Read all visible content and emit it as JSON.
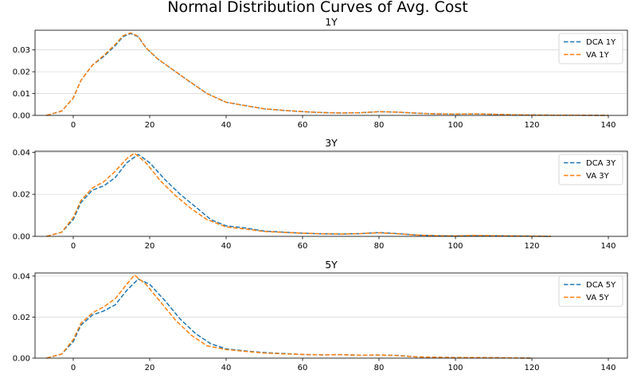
{
  "chart_data": {
    "type": "line",
    "title": "Normal Distribution Curves of Avg. Cost",
    "colors": {
      "dca": "#1f77b4",
      "va": "#ff7f0e",
      "grid": "#d9d9d9"
    },
    "grid": "horizontal",
    "legend_placement": "top-right",
    "line_style": "dashed",
    "panels": [
      {
        "title": "1Y",
        "xlim": [
          -10,
          145
        ],
        "ylim": [
          0,
          0.039
        ],
        "xticks": [
          0,
          20,
          40,
          60,
          80,
          100,
          120,
          140
        ],
        "yticks": [
          0,
          0.01,
          0.02,
          0.03
        ],
        "ytick_labels": [
          "0.00",
          "0.01",
          "0.02",
          "0.03"
        ],
        "series": [
          {
            "name": "DCA 1Y",
            "color_key": "dca",
            "x": [
              -7,
              -3,
              0,
              2,
              5,
              8,
              11,
              13,
              15,
              17,
              19,
              22,
              26,
              30,
              35,
              40,
              45,
              50,
              55,
              60,
              65,
              70,
              75,
              80,
              85,
              90,
              95,
              100,
              105,
              110,
              115,
              120,
              125,
              130,
              135,
              140
            ],
            "y": [
              0,
              0.002,
              0.008,
              0.016,
              0.023,
              0.027,
              0.032,
              0.036,
              0.0375,
              0.036,
              0.031,
              0.026,
              0.021,
              0.016,
              0.01,
              0.006,
              0.0045,
              0.003,
              0.0023,
              0.0017,
              0.0013,
              0.0011,
              0.0012,
              0.0017,
              0.0015,
              0.001,
              0.0007,
              0.0006,
              0.0007,
              0.0005,
              0.0003,
              0.0002,
              0.0001,
              0.0001,
              5e-05,
              0
            ]
          },
          {
            "name": "VA 1Y",
            "color_key": "va",
            "x": [
              -7,
              -3,
              0,
              2,
              5,
              8,
              11,
              13,
              15,
              17,
              19,
              22,
              26,
              30,
              35,
              40,
              45,
              50,
              55,
              60,
              65,
              70,
              75,
              80,
              85,
              90,
              95,
              100,
              105,
              110,
              115,
              120,
              125,
              130,
              135,
              140
            ],
            "y": [
              0,
              0.002,
              0.008,
              0.016,
              0.023,
              0.0275,
              0.0325,
              0.0365,
              0.0378,
              0.0362,
              0.031,
              0.026,
              0.021,
              0.016,
              0.01,
              0.006,
              0.0045,
              0.003,
              0.0023,
              0.0017,
              0.0013,
              0.0011,
              0.0012,
              0.0017,
              0.0015,
              0.001,
              0.0007,
              0.0006,
              0.0007,
              0.0005,
              0.0003,
              0.0002,
              0.0001,
              0.0001,
              5e-05,
              0
            ]
          }
        ]
      },
      {
        "title": "3Y",
        "xlim": [
          -10,
          145
        ],
        "ylim": [
          0,
          0.0405
        ],
        "xticks": [
          0,
          20,
          40,
          60,
          80,
          100,
          120,
          140
        ],
        "yticks": [
          0,
          0.02,
          0.04
        ],
        "ytick_labels": [
          "0.00",
          "0.02",
          "0.04"
        ],
        "series": [
          {
            "name": "DCA 3Y",
            "color_key": "dca",
            "x": [
              -7,
              -3,
              0,
              2,
              5,
              8,
              11,
              14,
              17,
              20,
              24,
              28,
              32,
              36,
              40,
              45,
              50,
              55,
              60,
              65,
              70,
              75,
              80,
              85,
              90,
              95,
              100,
              105,
              110,
              115,
              120,
              125
            ],
            "y": [
              0,
              0.002,
              0.008,
              0.016,
              0.022,
              0.024,
              0.028,
              0.035,
              0.039,
              0.035,
              0.027,
              0.02,
              0.014,
              0.008,
              0.005,
              0.004,
              0.0025,
              0.002,
              0.0015,
              0.0012,
              0.0011,
              0.0013,
              0.0018,
              0.0013,
              0.0006,
              0.0003,
              0.0002,
              0.0003,
              0.0003,
              0.0002,
              0.0001,
              0
            ]
          },
          {
            "name": "VA 3Y",
            "color_key": "va",
            "x": [
              -7,
              -3,
              0,
              2,
              5,
              8,
              11,
              14,
              16,
              19,
              23,
              27,
              31,
              35,
              40,
              45,
              50,
              55,
              60,
              65,
              70,
              75,
              80,
              85,
              90,
              95,
              100,
              105,
              110,
              115,
              120,
              125
            ],
            "y": [
              0,
              0.002,
              0.009,
              0.017,
              0.023,
              0.026,
              0.031,
              0.037,
              0.0395,
              0.035,
              0.026,
              0.019,
              0.013,
              0.008,
              0.0045,
              0.0035,
              0.0023,
              0.0019,
              0.0015,
              0.0012,
              0.0011,
              0.0013,
              0.0017,
              0.0012,
              0.0006,
              0.0003,
              0.0002,
              0.0004,
              0.0003,
              0.0002,
              0.0001,
              0
            ]
          }
        ]
      },
      {
        "title": "5Y",
        "xlim": [
          -10,
          145
        ],
        "ylim": [
          0,
          0.0415
        ],
        "xticks": [
          0,
          20,
          40,
          60,
          80,
          100,
          120,
          140
        ],
        "yticks": [
          0,
          0.02,
          0.04
        ],
        "ytick_labels": [
          "0.00",
          "0.02",
          "0.04"
        ],
        "series": [
          {
            "name": "DCA 5Y",
            "color_key": "dca",
            "x": [
              -7,
              -3,
              0,
              2,
              5,
              8,
              11,
              14,
              17,
              20,
              24,
              28,
              32,
              36,
              40,
              45,
              50,
              55,
              60,
              65,
              70,
              75,
              80,
              85,
              90,
              95,
              100,
              105,
              110,
              115,
              120
            ],
            "y": [
              0,
              0.002,
              0.008,
              0.016,
              0.021,
              0.023,
              0.026,
              0.033,
              0.0385,
              0.036,
              0.028,
              0.019,
              0.012,
              0.007,
              0.0045,
              0.0035,
              0.0027,
              0.0022,
              0.0018,
              0.0016,
              0.0017,
              0.0014,
              0.0015,
              0.0013,
              0.0006,
              0.0004,
              0.0003,
              0.0003,
              0.0002,
              0.0001,
              0
            ]
          },
          {
            "name": "VA 5Y",
            "color_key": "va",
            "x": [
              -7,
              -3,
              0,
              2,
              5,
              8,
              11,
              14,
              16,
              19,
              23,
              27,
              31,
              35,
              40,
              45,
              50,
              55,
              60,
              65,
              70,
              75,
              80,
              85,
              90,
              95,
              100,
              105,
              110,
              115,
              120
            ],
            "y": [
              0,
              0.002,
              0.009,
              0.017,
              0.022,
              0.025,
              0.029,
              0.036,
              0.0405,
              0.036,
              0.027,
              0.018,
              0.011,
              0.006,
              0.0042,
              0.0033,
              0.0025,
              0.0021,
              0.0018,
              0.0016,
              0.0017,
              0.0014,
              0.0015,
              0.0012,
              0.0006,
              0.0004,
              0.0003,
              0.0003,
              0.0002,
              0.0001,
              0
            ]
          }
        ]
      }
    ]
  }
}
